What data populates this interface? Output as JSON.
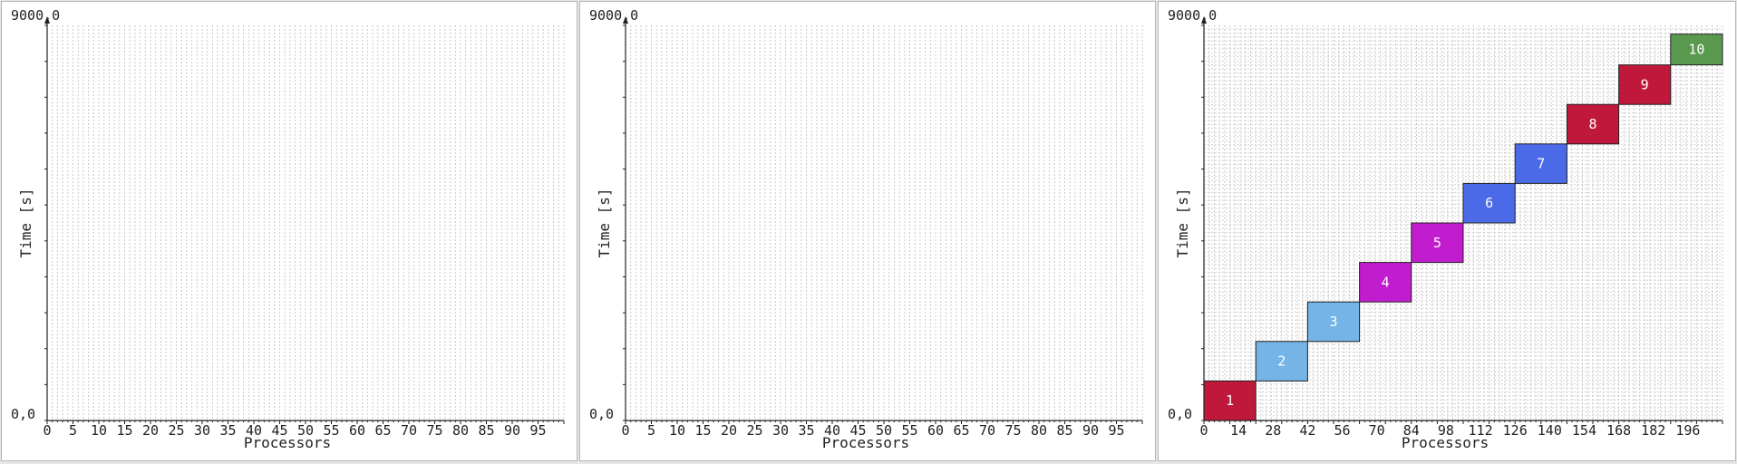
{
  "chart_data": [
    {
      "type": "gantt",
      "xlabel": "Processors",
      "ylabel": "Time [s]",
      "y_top_label": "9000,0",
      "y_bottom_label": "0,0",
      "ylim": [
        0,
        9000
      ],
      "xlim": [
        0,
        100
      ],
      "xticks": [
        "0",
        "5",
        "10",
        "15",
        "20",
        "25",
        "30",
        "35",
        "40",
        "45",
        "50",
        "55",
        "60",
        "65",
        "70",
        "75",
        "80",
        "85",
        "90",
        "95"
      ],
      "tasks": []
    },
    {
      "type": "gantt",
      "xlabel": "Processors",
      "ylabel": "Time [s]",
      "y_top_label": "9000,0",
      "y_bottom_label": "0,0",
      "ylim": [
        0,
        9000
      ],
      "xlim": [
        0,
        100
      ],
      "xticks": [
        "0",
        "5",
        "10",
        "15",
        "20",
        "25",
        "30",
        "35",
        "40",
        "45",
        "50",
        "55",
        "60",
        "65",
        "70",
        "75",
        "80",
        "85",
        "90",
        "95"
      ],
      "tasks": []
    },
    {
      "type": "gantt",
      "xlabel": "Processors",
      "ylabel": "Time [s]",
      "y_top_label": "9000,0",
      "y_bottom_label": "0,0",
      "ylim": [
        0,
        9000
      ],
      "xlim": [
        0,
        200
      ],
      "xticks": [
        "0",
        "14",
        "28",
        "42",
        "56",
        "70",
        "84",
        "98",
        "112",
        "126",
        "140",
        "154",
        "168",
        "182",
        "196"
      ],
      "tasks": [
        {
          "label": "1",
          "x0": 0,
          "x1": 20,
          "y0": 0,
          "y1": 900,
          "color": "#c0183a"
        },
        {
          "label": "2",
          "x0": 20,
          "x1": 40,
          "y0": 900,
          "y1": 1800,
          "color": "#74b4e6"
        },
        {
          "label": "3",
          "x0": 40,
          "x1": 60,
          "y0": 1800,
          "y1": 2700,
          "color": "#74b4e6"
        },
        {
          "label": "4",
          "x0": 60,
          "x1": 80,
          "y0": 2700,
          "y1": 3600,
          "color": "#c21ccf"
        },
        {
          "label": "5",
          "x0": 80,
          "x1": 100,
          "y0": 3600,
          "y1": 4500,
          "color": "#c21ccf"
        },
        {
          "label": "6",
          "x0": 100,
          "x1": 120,
          "y0": 4500,
          "y1": 5400,
          "color": "#4a6ae8"
        },
        {
          "label": "7",
          "x0": 120,
          "x1": 140,
          "y0": 5400,
          "y1": 6300,
          "color": "#4a6ae8"
        },
        {
          "label": "8",
          "x0": 140,
          "x1": 160,
          "y0": 6300,
          "y1": 7200,
          "color": "#c0183a"
        },
        {
          "label": "9",
          "x0": 160,
          "x1": 180,
          "y0": 7200,
          "y1": 8100,
          "color": "#c0183a"
        },
        {
          "label": "10",
          "x0": 180,
          "x1": 200,
          "y0": 8100,
          "y1": 8800,
          "color": "#5a9a4e"
        }
      ]
    }
  ]
}
